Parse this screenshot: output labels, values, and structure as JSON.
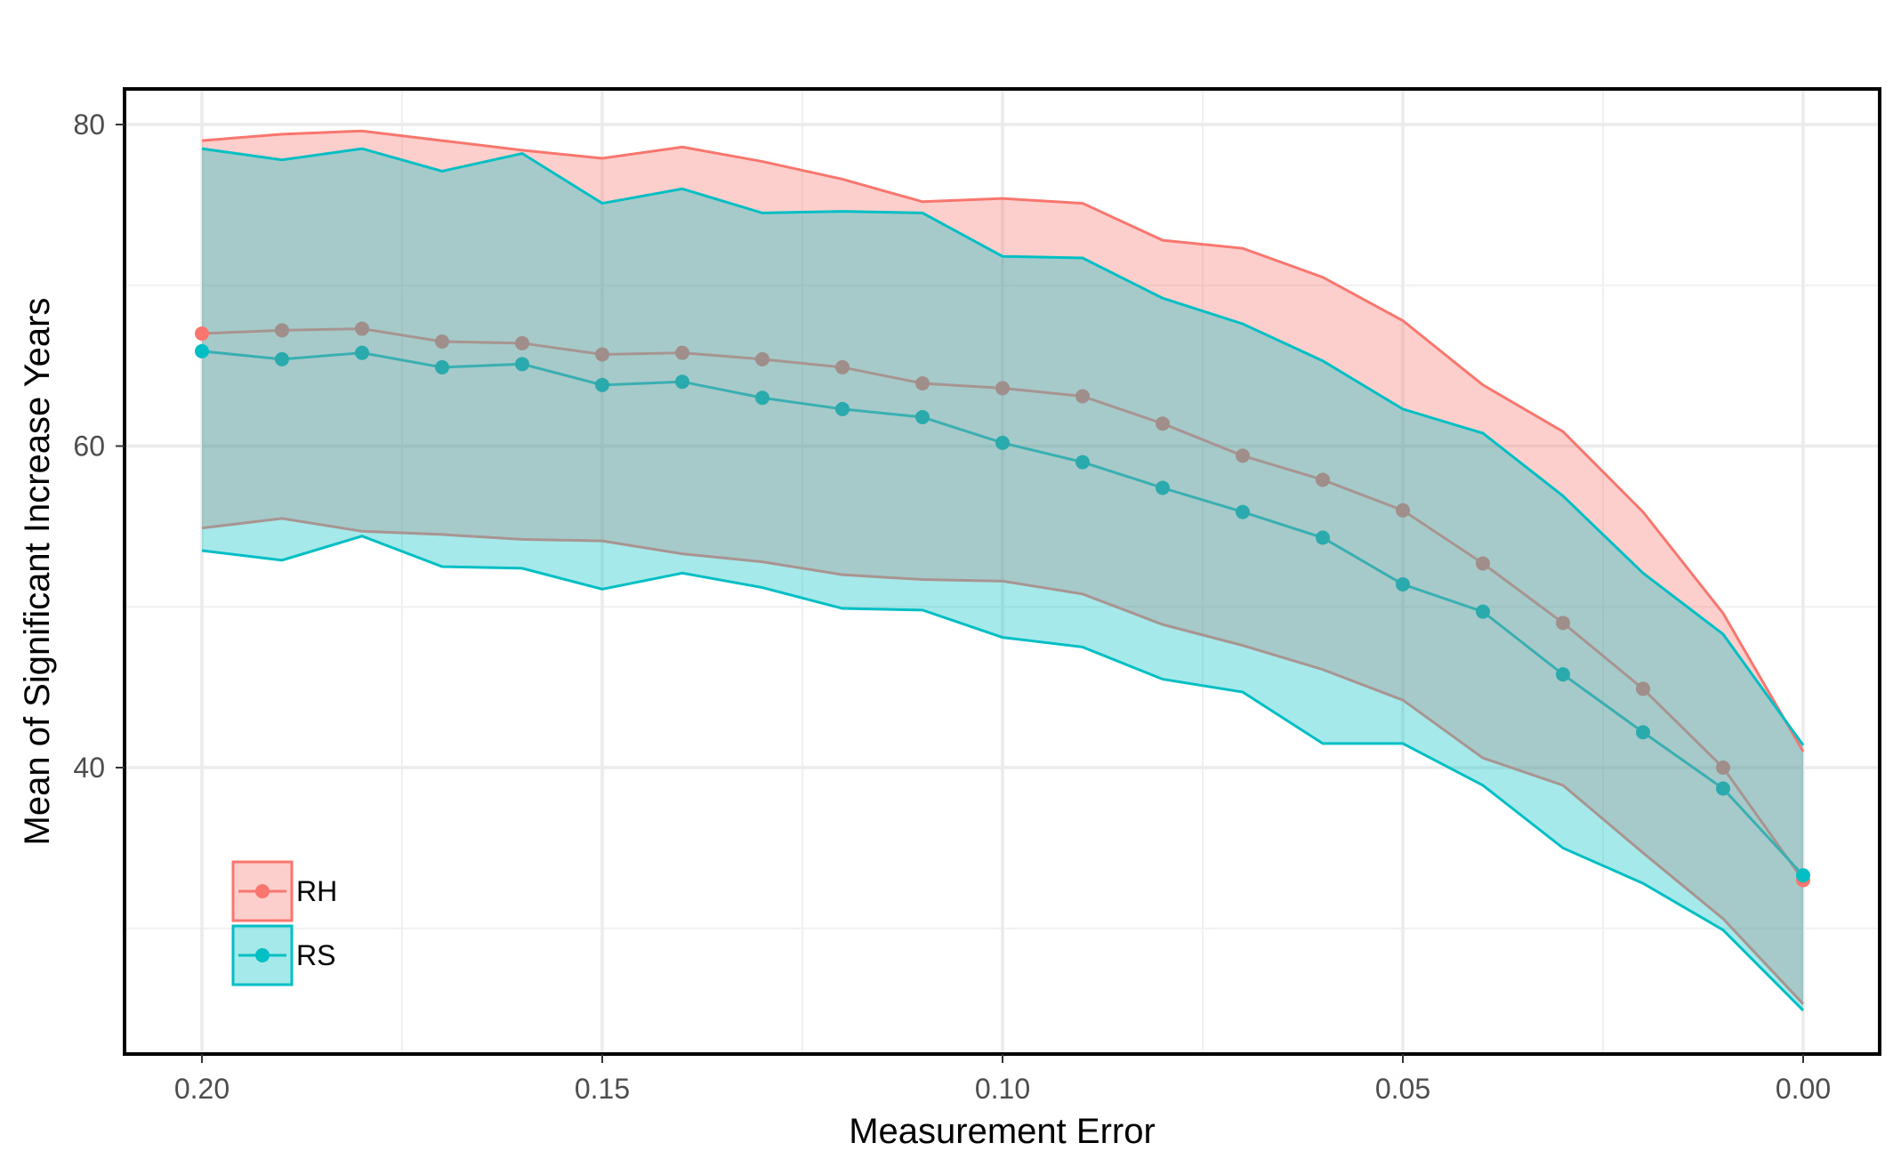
{
  "chart_data": {
    "type": "line",
    "title": "",
    "xlabel": "Measurement Error",
    "ylabel": "Mean of Significant Increase Years",
    "x_reversed": true,
    "xlim": [
      0.2,
      0.0
    ],
    "ylim": [
      23,
      82
    ],
    "x_ticks": [
      0.2,
      0.15,
      0.1,
      0.05,
      0.0
    ],
    "x_tick_labels": [
      "0.20",
      "0.15",
      "0.10",
      "0.05",
      "0.00"
    ],
    "y_ticks": [
      40,
      60,
      80
    ],
    "y_tick_labels": [
      "40",
      "60",
      "80"
    ],
    "grid": true,
    "legend_position": "bottom-left inside",
    "x": [
      0.2,
      0.19,
      0.18,
      0.17,
      0.16,
      0.15,
      0.14,
      0.13,
      0.12,
      0.11,
      0.1,
      0.09,
      0.08,
      0.07,
      0.06,
      0.05,
      0.04,
      0.03,
      0.02,
      0.01,
      0.0
    ],
    "series": [
      {
        "name": "RH",
        "color": "#F8766D",
        "mean": [
          67.0,
          67.2,
          67.3,
          66.5,
          66.4,
          65.7,
          65.8,
          65.4,
          64.9,
          63.9,
          63.6,
          63.1,
          61.4,
          59.4,
          57.9,
          56.0,
          52.7,
          49.0,
          44.9,
          40.0,
          33.0
        ],
        "upper": [
          79.0,
          79.4,
          79.6,
          79.0,
          78.4,
          77.9,
          78.6,
          77.7,
          76.6,
          75.2,
          75.4,
          75.1,
          72.8,
          72.3,
          70.5,
          67.8,
          63.8,
          60.9,
          55.9,
          49.6,
          41.0
        ],
        "lower": [
          54.9,
          55.5,
          54.7,
          54.5,
          54.2,
          54.1,
          53.3,
          52.8,
          52.0,
          51.7,
          51.6,
          50.8,
          48.9,
          47.6,
          46.1,
          44.2,
          40.6,
          38.9,
          34.7,
          30.6,
          25.3
        ]
      },
      {
        "name": "RS",
        "color": "#00BFC4",
        "mean": [
          65.9,
          65.4,
          65.8,
          64.9,
          65.1,
          63.8,
          64.0,
          63.0,
          62.3,
          61.8,
          60.2,
          59.0,
          57.4,
          55.9,
          54.3,
          51.4,
          49.7,
          45.8,
          42.2,
          38.7,
          33.3
        ],
        "upper": [
          78.5,
          77.8,
          78.5,
          77.1,
          78.2,
          75.1,
          76.0,
          74.5,
          74.6,
          74.5,
          71.8,
          71.7,
          69.2,
          67.6,
          65.3,
          62.3,
          60.8,
          56.9,
          52.1,
          48.3,
          41.4
        ],
        "lower": [
          53.5,
          52.9,
          54.4,
          52.5,
          52.4,
          51.1,
          52.1,
          51.2,
          49.9,
          49.8,
          48.1,
          47.5,
          45.5,
          44.7,
          41.5,
          41.5,
          38.9,
          35.0,
          32.8,
          29.9,
          24.9
        ]
      }
    ]
  }
}
